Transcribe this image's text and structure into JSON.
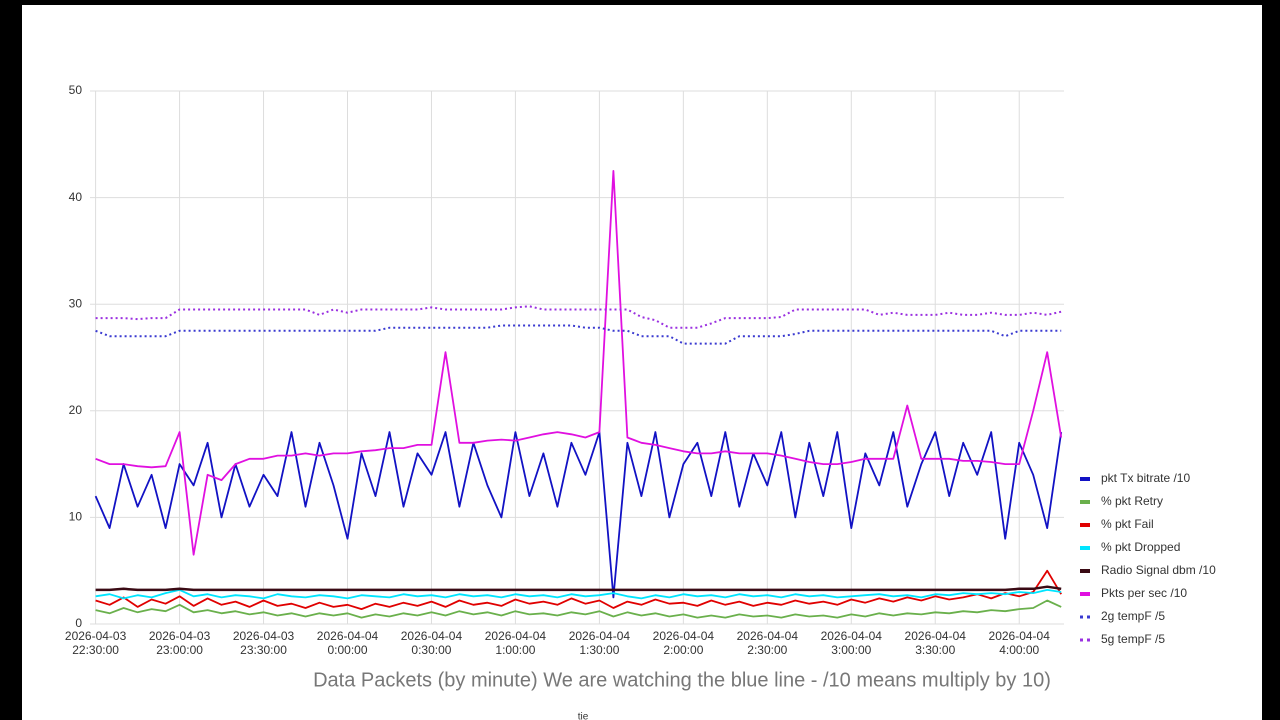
{
  "chart_data": {
    "type": "line",
    "title": "Data Packets  (by minute) We are watching the blue line -  /10 means multiply by 10)",
    "annotation": "tie",
    "x": [
      "2026-04-03 22:30:00",
      "2026-04-03 22:35:00",
      "2026-04-03 22:40:00",
      "2026-04-03 22:45:00",
      "2026-04-03 22:50:00",
      "2026-04-03 22:55:00",
      "2026-04-03 23:00:00",
      "2026-04-03 23:05:00",
      "2026-04-03 23:10:00",
      "2026-04-03 23:15:00",
      "2026-04-03 23:20:00",
      "2026-04-03 23:25:00",
      "2026-04-03 23:30:00",
      "2026-04-03 23:35:00",
      "2026-04-03 23:40:00",
      "2026-04-03 23:45:00",
      "2026-04-03 23:50:00",
      "2026-04-03 23:55:00",
      "2026-04-04 00:00:00",
      "2026-04-04 00:05:00",
      "2026-04-04 00:10:00",
      "2026-04-04 00:15:00",
      "2026-04-04 00:20:00",
      "2026-04-04 00:25:00",
      "2026-04-04 00:30:00",
      "2026-04-04 00:35:00",
      "2026-04-04 00:40:00",
      "2026-04-04 00:45:00",
      "2026-04-04 00:50:00",
      "2026-04-04 00:55:00",
      "2026-04-04 01:00:00",
      "2026-04-04 01:05:00",
      "2026-04-04 01:10:00",
      "2026-04-04 01:15:00",
      "2026-04-04 01:20:00",
      "2026-04-04 01:25:00",
      "2026-04-04 01:30:00",
      "2026-04-04 01:35:00",
      "2026-04-04 01:40:00",
      "2026-04-04 01:45:00",
      "2026-04-04 01:50:00",
      "2026-04-04 01:55:00",
      "2026-04-04 02:00:00",
      "2026-04-04 02:05:00",
      "2026-04-04 02:10:00",
      "2026-04-04 02:15:00",
      "2026-04-04 02:20:00",
      "2026-04-04 02:25:00",
      "2026-04-04 02:30:00",
      "2026-04-04 02:35:00",
      "2026-04-04 02:40:00",
      "2026-04-04 02:45:00",
      "2026-04-04 02:50:00",
      "2026-04-04 02:55:00",
      "2026-04-04 03:00:00",
      "2026-04-04 03:05:00",
      "2026-04-04 03:10:00",
      "2026-04-04 03:15:00",
      "2026-04-04 03:20:00",
      "2026-04-04 03:25:00",
      "2026-04-04 03:30:00",
      "2026-04-04 03:35:00",
      "2026-04-04 03:40:00",
      "2026-04-04 03:45:00",
      "2026-04-04 03:50:00",
      "2026-04-04 03:55:00",
      "2026-04-04 04:00:00",
      "2026-04-04 04:05:00",
      "2026-04-04 04:10:00",
      "2026-04-04 04:15:00"
    ],
    "xlim": [
      "2026-04-03 22:28:00",
      "2026-04-04 04:16:00"
    ],
    "xticks": [
      "2026-04-03 22:30:00",
      "2026-04-03 23:00:00",
      "2026-04-03 23:30:00",
      "2026-04-04 0:00:00",
      "2026-04-04 0:30:00",
      "2026-04-04 1:00:00",
      "2026-04-04 1:30:00",
      "2026-04-04 2:00:00",
      "2026-04-04 2:30:00",
      "2026-04-04 3:00:00",
      "2026-04-04 3:30:00",
      "2026-04-04 4:00:00"
    ],
    "ylim": [
      0,
      50
    ],
    "yticks": [
      0,
      10,
      20,
      30,
      40,
      50
    ],
    "grid": true,
    "legend": "right",
    "series": [
      {
        "name": "pkt Tx bitrate /10",
        "color": "#1212c4",
        "style": "solid",
        "values": [
          12,
          9,
          15,
          11,
          14,
          9,
          15,
          13,
          17,
          10,
          15,
          11,
          14,
          12,
          18,
          11,
          17,
          13,
          8,
          16,
          12,
          18,
          11,
          16,
          14,
          18,
          11,
          17,
          13,
          10,
          18,
          12,
          16,
          11,
          17,
          14,
          18,
          2.5,
          17,
          12,
          18,
          10,
          15,
          17,
          12,
          18,
          11,
          16,
          13,
          18,
          10,
          17,
          12,
          18,
          9,
          16,
          13,
          18,
          11,
          15,
          18,
          12,
          17,
          14,
          18,
          8,
          17,
          14,
          9,
          18
        ]
      },
      {
        "name": "% pkt Retry",
        "color": "#6ab04c",
        "style": "solid",
        "values": [
          1.3,
          1.0,
          1.5,
          1.1,
          1.4,
          1.2,
          1.8,
          1.1,
          1.3,
          1.0,
          1.2,
          0.9,
          1.1,
          0.8,
          1.0,
          0.7,
          1.0,
          0.8,
          1.0,
          0.6,
          0.9,
          0.7,
          1.0,
          0.8,
          1.1,
          0.8,
          1.2,
          0.9,
          1.1,
          0.8,
          1.2,
          0.9,
          1.0,
          0.8,
          1.1,
          0.9,
          1.2,
          0.7,
          1.1,
          0.8,
          1.0,
          0.7,
          0.9,
          0.6,
          0.8,
          0.6,
          0.9,
          0.7,
          0.8,
          0.6,
          0.9,
          0.7,
          0.8,
          0.6,
          0.9,
          0.7,
          1.0,
          0.8,
          1.0,
          0.9,
          1.1,
          1.0,
          1.2,
          1.1,
          1.3,
          1.2,
          1.4,
          1.5,
          2.2,
          1.6
        ]
      },
      {
        "name": "% pkt Fail",
        "color": "#e00000",
        "style": "solid",
        "values": [
          2.2,
          1.8,
          2.5,
          1.6,
          2.3,
          1.9,
          2.6,
          1.7,
          2.4,
          1.8,
          2.1,
          1.6,
          2.2,
          1.7,
          1.9,
          1.5,
          2.0,
          1.6,
          1.8,
          1.4,
          1.9,
          1.6,
          2.0,
          1.7,
          2.1,
          1.6,
          2.2,
          1.8,
          2.0,
          1.7,
          2.3,
          1.9,
          2.1,
          1.8,
          2.4,
          1.9,
          2.2,
          1.5,
          2.1,
          1.8,
          2.3,
          1.9,
          2.0,
          1.7,
          2.2,
          1.8,
          2.1,
          1.7,
          2.0,
          1.8,
          2.2,
          1.9,
          2.1,
          1.8,
          2.3,
          2.0,
          2.4,
          2.1,
          2.5,
          2.2,
          2.6,
          2.3,
          2.5,
          2.8,
          2.4,
          2.9,
          2.6,
          3.0,
          5.0,
          2.8
        ]
      },
      {
        "name": "% pkt Dropped",
        "color": "#00e5ff",
        "style": "solid",
        "values": [
          2.6,
          2.8,
          2.4,
          2.7,
          2.5,
          2.9,
          3.2,
          2.6,
          2.8,
          2.5,
          2.7,
          2.6,
          2.4,
          2.8,
          2.6,
          2.5,
          2.7,
          2.6,
          2.4,
          2.7,
          2.6,
          2.5,
          2.8,
          2.6,
          2.7,
          2.5,
          2.8,
          2.6,
          2.7,
          2.5,
          2.8,
          2.6,
          2.7,
          2.5,
          2.8,
          2.6,
          2.7,
          2.9,
          2.6,
          2.4,
          2.7,
          2.5,
          2.8,
          2.6,
          2.7,
          2.5,
          2.8,
          2.6,
          2.7,
          2.5,
          2.8,
          2.6,
          2.7,
          2.5,
          2.6,
          2.7,
          2.8,
          2.6,
          2.7,
          2.5,
          2.8,
          2.7,
          2.9,
          2.8,
          2.9,
          2.8,
          3.0,
          2.9,
          3.2,
          3.0
        ]
      },
      {
        "name": "Radio Signal dbm /10",
        "color": "#3a0a14",
        "style": "solid",
        "values": [
          3.2,
          3.2,
          3.3,
          3.2,
          3.2,
          3.2,
          3.3,
          3.2,
          3.2,
          3.2,
          3.2,
          3.2,
          3.2,
          3.2,
          3.2,
          3.2,
          3.2,
          3.2,
          3.2,
          3.2,
          3.2,
          3.2,
          3.2,
          3.2,
          3.2,
          3.2,
          3.2,
          3.2,
          3.2,
          3.2,
          3.2,
          3.2,
          3.2,
          3.2,
          3.2,
          3.2,
          3.2,
          3.2,
          3.2,
          3.2,
          3.2,
          3.2,
          3.2,
          3.2,
          3.2,
          3.2,
          3.2,
          3.2,
          3.2,
          3.2,
          3.2,
          3.2,
          3.2,
          3.2,
          3.2,
          3.2,
          3.2,
          3.2,
          3.2,
          3.2,
          3.2,
          3.2,
          3.2,
          3.2,
          3.2,
          3.2,
          3.3,
          3.3,
          3.5,
          3.3
        ]
      },
      {
        "name": "Pkts per sec /10",
        "color": "#e010e0",
        "style": "solid",
        "values": [
          15.5,
          15,
          15,
          14.8,
          14.7,
          14.8,
          18,
          6.5,
          14,
          13.5,
          15,
          15.5,
          15.5,
          15.8,
          15.8,
          16,
          15.8,
          16,
          16,
          16.2,
          16.3,
          16.5,
          16.5,
          16.8,
          16.8,
          25.5,
          17,
          17,
          17.2,
          17.3,
          17.2,
          17.5,
          17.8,
          18,
          17.8,
          17.5,
          18,
          42.5,
          17.5,
          17,
          16.8,
          16.5,
          16.2,
          16,
          16,
          16.2,
          16,
          16,
          16,
          15.8,
          15.5,
          15.2,
          15,
          15,
          15.2,
          15.5,
          15.5,
          15.5,
          20.5,
          15.5,
          15.5,
          15.5,
          15.3,
          15.3,
          15.2,
          15,
          15,
          20,
          25.5,
          17.5
        ]
      },
      {
        "name": "2g tempF /5",
        "color": "#3a3ad0",
        "style": "dotted",
        "values": [
          27.5,
          27,
          27,
          27,
          27,
          27,
          27.5,
          27.5,
          27.5,
          27.5,
          27.5,
          27.5,
          27.5,
          27.5,
          27.5,
          27.5,
          27.5,
          27.5,
          27.5,
          27.5,
          27.5,
          27.8,
          27.8,
          27.8,
          27.8,
          27.8,
          27.8,
          27.8,
          27.8,
          28,
          28,
          28,
          28,
          28,
          28,
          27.8,
          27.8,
          27.5,
          27.5,
          27,
          27,
          27,
          26.3,
          26.3,
          26.3,
          26.3,
          27,
          27,
          27,
          27,
          27.2,
          27.5,
          27.5,
          27.5,
          27.5,
          27.5,
          27.5,
          27.5,
          27.5,
          27.5,
          27.5,
          27.5,
          27.5,
          27.5,
          27.5,
          27,
          27.5,
          27.5,
          27.5,
          27.5
        ]
      },
      {
        "name": "5g tempF /5",
        "color": "#9a30e0",
        "style": "dotted",
        "values": [
          28.7,
          28.7,
          28.7,
          28.6,
          28.7,
          28.7,
          29.5,
          29.5,
          29.5,
          29.5,
          29.5,
          29.5,
          29.5,
          29.5,
          29.5,
          29.5,
          29,
          29.5,
          29.2,
          29.5,
          29.5,
          29.5,
          29.5,
          29.5,
          29.7,
          29.5,
          29.5,
          29.5,
          29.5,
          29.5,
          29.7,
          29.8,
          29.5,
          29.5,
          29.5,
          29.5,
          29.5,
          29.5,
          29.5,
          28.8,
          28.5,
          27.8,
          27.8,
          27.8,
          28.2,
          28.7,
          28.7,
          28.7,
          28.7,
          28.8,
          29.5,
          29.5,
          29.5,
          29.5,
          29.5,
          29.5,
          29,
          29.2,
          29,
          29,
          29,
          29.2,
          29,
          29,
          29.2,
          29,
          29,
          29.2,
          29,
          29.3
        ]
      }
    ]
  }
}
